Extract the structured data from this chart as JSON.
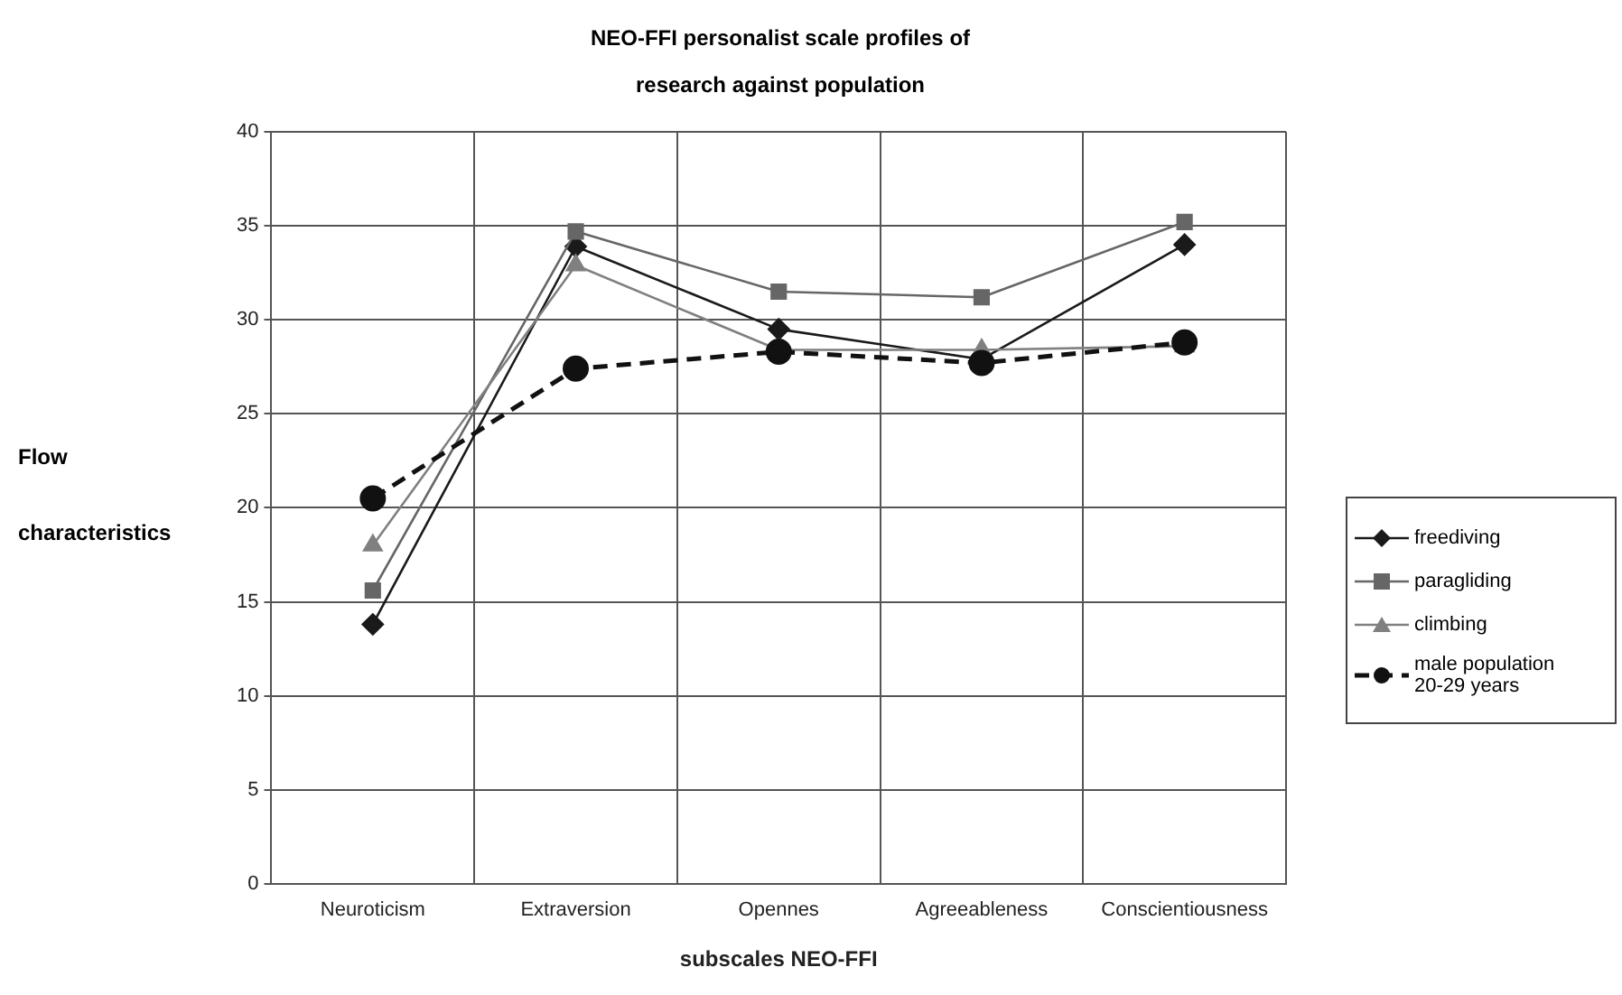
{
  "chart_data": {
    "type": "line",
    "title": "NEO-FFI personalist scale profiles of research against population",
    "xlabel": "subscales NEO-FFI",
    "ylabel": "Flow characteristics",
    "categories": [
      "Neuroticism",
      "Extraversion",
      "Opennes",
      "Agreeableness",
      "Conscientiousness"
    ],
    "series": [
      {
        "name": "freediving",
        "color": "#1a1a1a",
        "marker": "diamond",
        "line_style": "solid",
        "values": [
          13.8,
          33.9,
          29.5,
          27.9,
          34.0
        ]
      },
      {
        "name": "paragliding",
        "color": "#666666",
        "marker": "square",
        "line_style": "solid",
        "values": [
          15.6,
          34.7,
          31.5,
          31.2,
          35.2
        ]
      },
      {
        "name": "climbing",
        "color": "#808080",
        "marker": "triangle",
        "line_style": "solid",
        "values": [
          18.0,
          32.9,
          28.4,
          28.4,
          28.6
        ]
      },
      {
        "name": "male population 20-29  years",
        "color": "#111111",
        "marker": "circle",
        "line_style": "dashed",
        "values": [
          20.5,
          27.4,
          28.3,
          27.7,
          28.8
        ]
      }
    ],
    "ylim": [
      0,
      40
    ],
    "yticks": [
      0,
      5,
      10,
      15,
      20,
      25,
      30,
      35,
      40
    ],
    "grid": true,
    "legend": "right"
  }
}
